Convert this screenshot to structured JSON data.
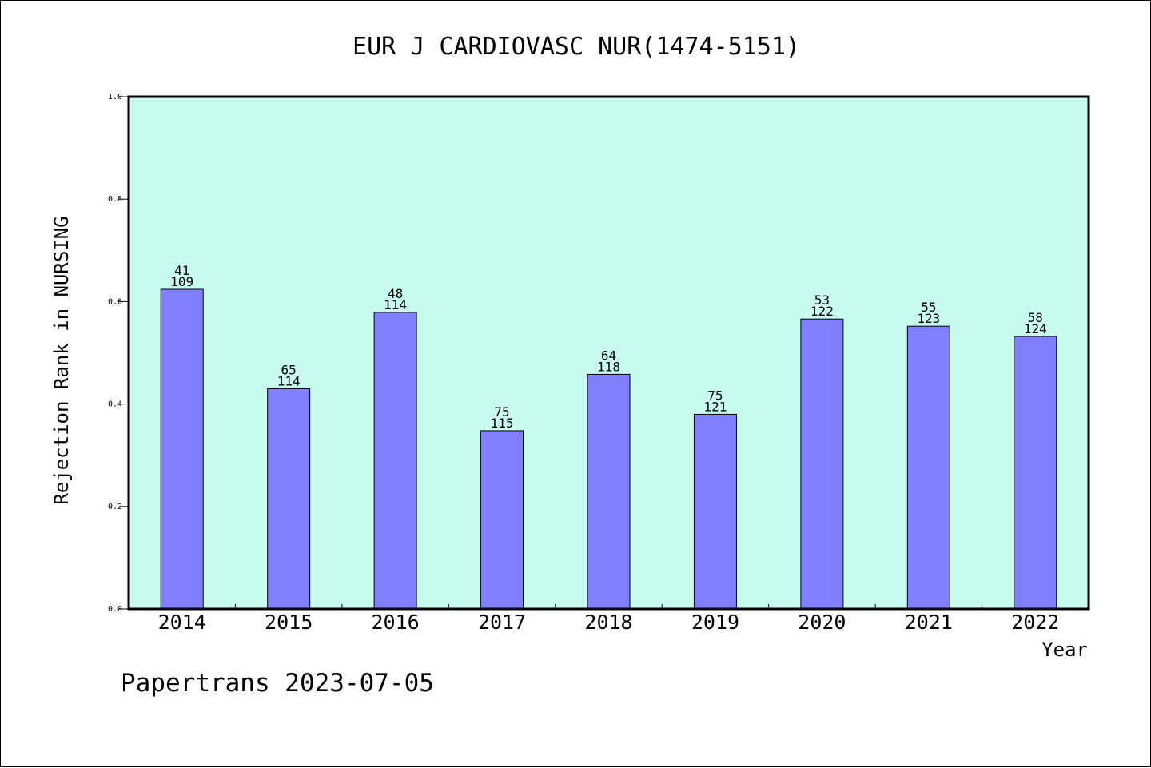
{
  "chart_data": {
    "type": "bar",
    "title": "EUR J CARDIOVASC NUR(1474-5151)",
    "xlabel": "Year",
    "ylabel": "Rejection Rank in NURSING",
    "ylim": [
      0.0,
      1.0
    ],
    "yticks": [
      "0.0",
      "0.2",
      "0.4",
      "0.6",
      "0.8",
      "1.0"
    ],
    "categories": [
      "2014",
      "2015",
      "2016",
      "2017",
      "2018",
      "2019",
      "2020",
      "2021",
      "2022"
    ],
    "values": [
      0.624,
      0.43,
      0.579,
      0.348,
      0.458,
      0.38,
      0.566,
      0.552,
      0.532
    ],
    "labels_top": [
      "41",
      "65",
      "48",
      "75",
      "64",
      "75",
      "53",
      "55",
      "58"
    ],
    "labels_bottom": [
      "109",
      "114",
      "114",
      "115",
      "118",
      "121",
      "122",
      "123",
      "124"
    ],
    "grid": false,
    "legend": "none"
  },
  "colors": {
    "plot_background": "#c8fcee",
    "bar_fill": "#8080ff",
    "bar_stroke": "#000000",
    "axis": "#000000"
  },
  "footer": {
    "watermark": "Papertrans 2023-07-05"
  }
}
